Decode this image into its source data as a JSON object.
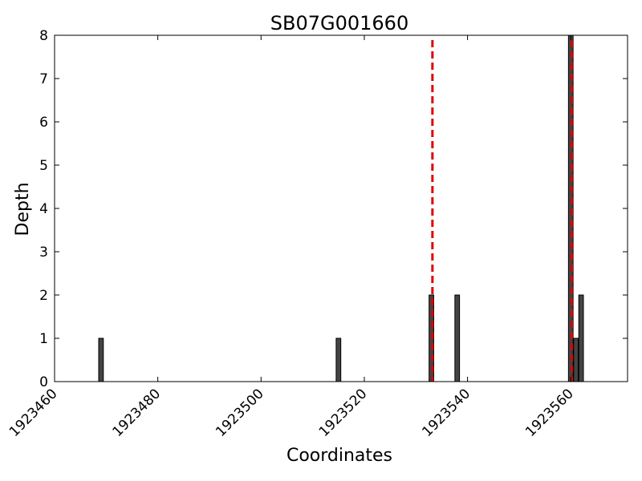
{
  "chart_data": {
    "type": "bar",
    "title": "SB07G001660",
    "xlabel": "Coordinates",
    "ylabel": "Depth",
    "xlim": [
      1923460,
      1923571
    ],
    "ylim": [
      0,
      8
    ],
    "x_ticks": [
      1923460,
      1923480,
      1923500,
      1923520,
      1923540,
      1923560
    ],
    "y_ticks": [
      0,
      1,
      2,
      3,
      4,
      5,
      6,
      7,
      8
    ],
    "grid": false,
    "bar_color": "#444444",
    "bars": [
      {
        "x": 1923469,
        "value": 1
      },
      {
        "x": 1923515,
        "value": 1
      },
      {
        "x": 1923533,
        "value": 2
      },
      {
        "x": 1923538,
        "value": 2
      },
      {
        "x": 1923560,
        "value": 8
      },
      {
        "x": 1923561,
        "value": 1
      },
      {
        "x": 1923562,
        "value": 2
      }
    ],
    "vlines": [
      {
        "x": 1923533.2,
        "color": "#dd0000",
        "style": "dashed"
      },
      {
        "x": 1923560.2,
        "color": "#dd0000",
        "style": "dashed"
      }
    ]
  }
}
